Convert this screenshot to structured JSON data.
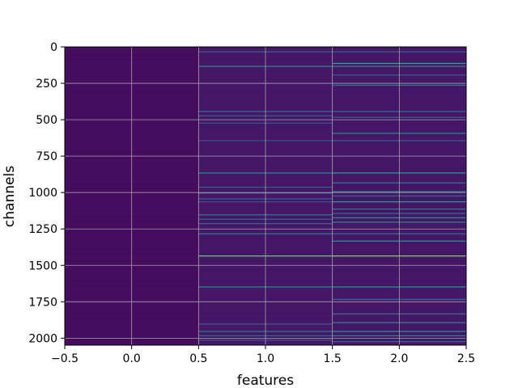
{
  "chart_data": {
    "type": "heatmap",
    "title": "",
    "xlabel": "features",
    "ylabel": "channels",
    "xlim": [
      -0.5,
      2.5
    ],
    "ylim": [
      2048,
      0
    ],
    "x_ticks": [
      "-0.5",
      "0.0",
      "0.5",
      "1.0",
      "1.5",
      "2.0",
      "2.5"
    ],
    "x_tick_values": [
      -0.5,
      0.0,
      0.5,
      1.0,
      1.5,
      2.0,
      2.5
    ],
    "y_ticks": [
      "0",
      "250",
      "500",
      "750",
      "1000",
      "1250",
      "1500",
      "1750",
      "2000"
    ],
    "y_tick_values": [
      0,
      250,
      500,
      750,
      1000,
      1250,
      1500,
      1750,
      2000
    ],
    "grid": true,
    "colormap": "viridis",
    "columns": [
      {
        "feature": 0,
        "background": 0.03,
        "bright_channels": [
          [
            746,
            0.06
          ],
          [
            1432,
            0.05
          ]
        ]
      },
      {
        "feature": 1,
        "background": 0.06,
        "bright_channels": [
          [
            30,
            0.3
          ],
          [
            130,
            0.45
          ],
          [
            440,
            0.35
          ],
          [
            470,
            0.3
          ],
          [
            520,
            0.25
          ],
          [
            640,
            0.25
          ],
          [
            862,
            0.45
          ],
          [
            960,
            0.3
          ],
          [
            1000,
            0.35
          ],
          [
            1040,
            0.3
          ],
          [
            1060,
            0.25
          ],
          [
            1150,
            0.4
          ],
          [
            1180,
            0.3
          ],
          [
            1210,
            0.35
          ],
          [
            1280,
            0.4
          ],
          [
            1432,
            0.75
          ],
          [
            1645,
            0.45
          ],
          [
            1900,
            0.3
          ],
          [
            1950,
            0.4
          ],
          [
            1980,
            0.35
          ],
          [
            2010,
            0.3
          ]
        ]
      },
      {
        "feature": 2,
        "background": 0.06,
        "bright_channels": [
          [
            30,
            0.3
          ],
          [
            110,
            0.6
          ],
          [
            130,
            0.45
          ],
          [
            190,
            0.3
          ],
          [
            260,
            0.4
          ],
          [
            440,
            0.35
          ],
          [
            480,
            0.3
          ],
          [
            590,
            0.45
          ],
          [
            640,
            0.3
          ],
          [
            862,
            0.55
          ],
          [
            930,
            0.4
          ],
          [
            990,
            0.45
          ],
          [
            1020,
            0.35
          ],
          [
            1060,
            0.55
          ],
          [
            1110,
            0.4
          ],
          [
            1140,
            0.35
          ],
          [
            1170,
            0.5
          ],
          [
            1200,
            0.45
          ],
          [
            1280,
            0.35
          ],
          [
            1330,
            0.5
          ],
          [
            1432,
            0.8
          ],
          [
            1645,
            0.5
          ],
          [
            1730,
            0.35
          ],
          [
            1830,
            0.4
          ],
          [
            1890,
            0.45
          ],
          [
            1950,
            0.5
          ],
          [
            1980,
            0.45
          ],
          [
            2020,
            0.35
          ]
        ]
      }
    ]
  }
}
